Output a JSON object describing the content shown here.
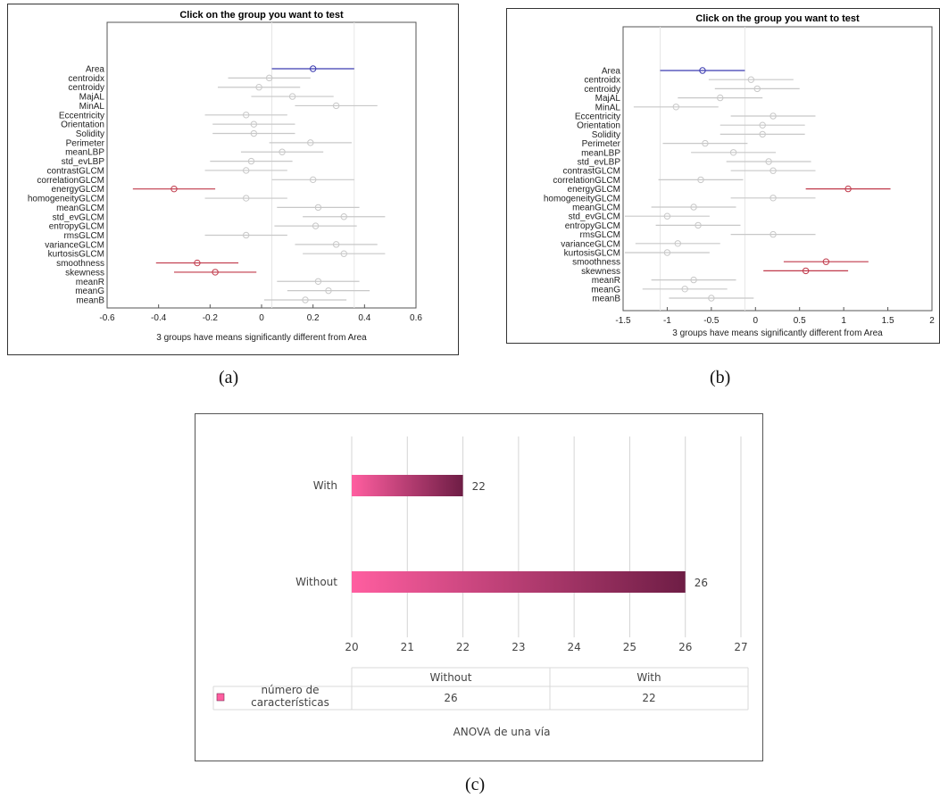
{
  "captions": {
    "a": "(a)",
    "b": "(b)",
    "c": "(c)"
  },
  "chart_data": [
    {
      "type": "scatter",
      "title": "Click on the group you want to test",
      "xlabel": "3 groups have means significantly different from Area",
      "ylabel": "",
      "xlim": [
        -0.6,
        0.6
      ],
      "xticks": [
        "-0.6",
        "-0.4",
        "-0.2",
        "0",
        "0.2",
        "0.4",
        "0.6"
      ],
      "grid": false,
      "categories": [
        "Area",
        "centroidx",
        "centroidy",
        "MajAL",
        "MinAL",
        "Eccentricity",
        "Orientation",
        "Solidity",
        "Perimeter",
        "meanLBP",
        "std_evLBP",
        "contrastGLCM",
        "correlationGLCM",
        "energyGLCM",
        "homogeneityGLCM",
        "meanGLCM",
        "std_evGLCM",
        "entropyGLCM",
        "rmsGLCM",
        "varianceGLCM",
        "kurtosisGLCM",
        "smoothness",
        "skewness",
        "meanR",
        "meanG",
        "meanB"
      ],
      "means": [
        0.2,
        0.03,
        -0.01,
        0.12,
        0.29,
        -0.06,
        -0.03,
        -0.03,
        0.19,
        0.08,
        -0.04,
        -0.06,
        0.2,
        -0.34,
        -0.06,
        0.22,
        0.32,
        0.21,
        -0.06,
        0.29,
        0.32,
        -0.25,
        -0.18,
        0.22,
        0.26,
        0.17
      ],
      "half_width": 0.16,
      "highlight": {
        "selected": [
          "Area"
        ],
        "significant": [
          "energyGLCM",
          "smoothness",
          "skewness"
        ]
      },
      "colors": {
        "selected": "#3a3ab0",
        "significant": "#c0394a",
        "other": "#c8c8c8"
      }
    },
    {
      "type": "scatter",
      "title": "Click on the group you want to test",
      "xlabel": "3 groups have means significantly different from Area",
      "ylabel": "",
      "xlim": [
        -1.5,
        2
      ],
      "xticks": [
        "-1.5",
        "-1",
        "-0.5",
        "0",
        "0.5",
        "1",
        "1.5",
        "2"
      ],
      "grid": false,
      "categories": [
        "Area",
        "centroidx",
        "centroidy",
        "MajAL",
        "MinAL",
        "Eccentricity",
        "Orientation",
        "Solidity",
        "Perimeter",
        "meanLBP",
        "std_evLBP",
        "contrastGLCM",
        "correlationGLCM",
        "energyGLCM",
        "homogeneityGLCM",
        "meanGLCM",
        "std_evGLCM",
        "entropyGLCM",
        "rmsGLCM",
        "varianceGLCM",
        "kurtosisGLCM",
        "smoothness",
        "skewness",
        "meanR",
        "meanG",
        "meanB"
      ],
      "means": [
        -0.6,
        -0.05,
        0.02,
        -0.4,
        -0.9,
        0.2,
        0.08,
        0.08,
        -0.57,
        -0.25,
        0.15,
        0.2,
        -0.62,
        1.05,
        0.2,
        -0.7,
        -1.0,
        -0.65,
        0.2,
        -0.88,
        -1.0,
        0.8,
        0.57,
        -0.7,
        -0.8,
        -0.5
      ],
      "half_width": 0.48,
      "highlight": {
        "selected": [
          "Area"
        ],
        "significant": [
          "energyGLCM",
          "smoothness",
          "skewness"
        ]
      },
      "colors": {
        "selected": "#3a3ab0",
        "significant": "#c0394a",
        "other": "#c8c8c8"
      }
    },
    {
      "type": "bar",
      "orientation": "horizontal",
      "title": "ANOVA de una vía",
      "categories": [
        "Without",
        "With"
      ],
      "series": [
        {
          "name": "número de características",
          "values": [
            26,
            22
          ]
        }
      ],
      "xlim": [
        20,
        27
      ],
      "xticks": [
        "20",
        "21",
        "22",
        "23",
        "24",
        "25",
        "26",
        "27"
      ],
      "grid": true,
      "data_table": {
        "headers": [
          "Without",
          "With"
        ],
        "row_label_lines": [
          "número de",
          "características"
        ],
        "cells": [
          "26",
          "22"
        ]
      },
      "colors": {
        "bar_start": "#ff5ea0",
        "bar_end": "#6e1d45"
      }
    }
  ]
}
